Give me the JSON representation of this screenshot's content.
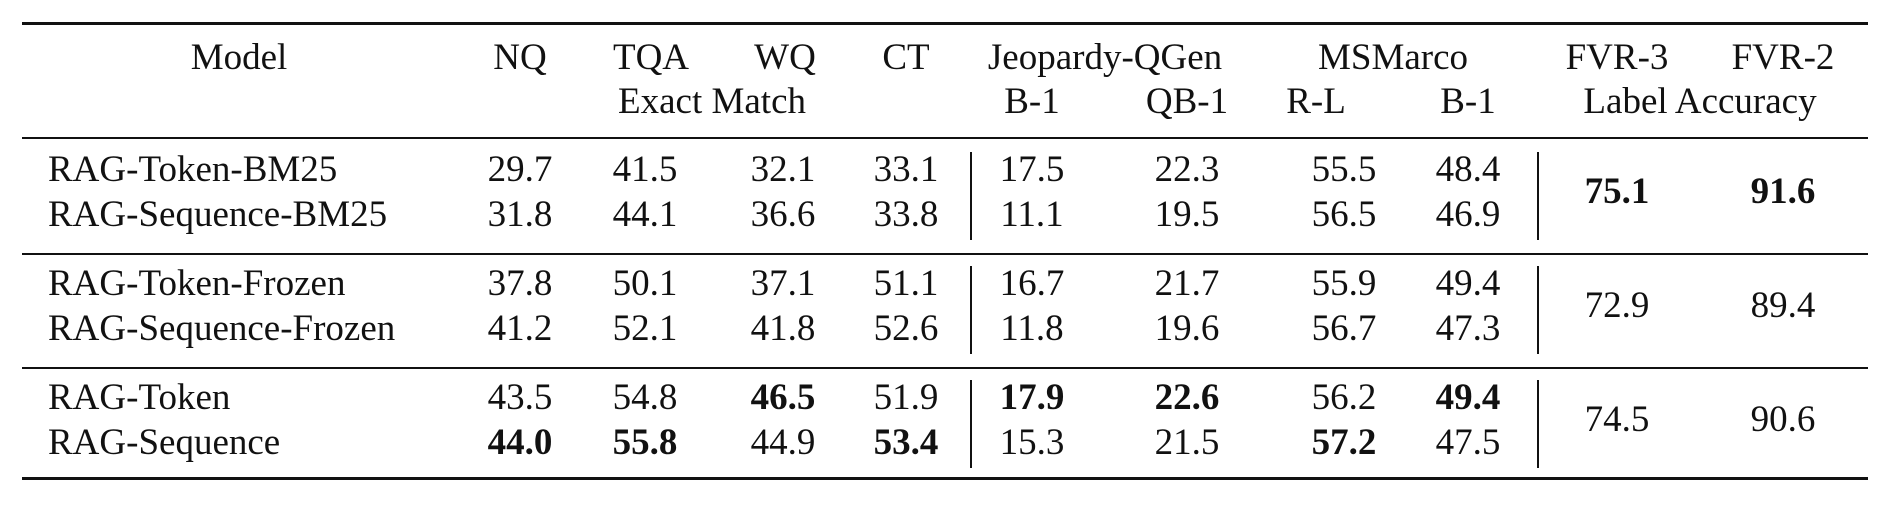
{
  "table": {
    "header": {
      "model": "Model",
      "nq": "NQ",
      "tqa": "TQA",
      "wq": "WQ",
      "ct": "CT",
      "exact_match": "Exact Match",
      "jeopardy": "Jeopardy-QGen",
      "jeo_b1": "B-1",
      "jeo_qb1": "QB-1",
      "msmarco": "MSMarco",
      "ms_rl": "R-L",
      "ms_b1": "B-1",
      "fvr3": "FVR-3",
      "fvr2": "FVR-2",
      "label_accuracy": "Label Accuracy"
    },
    "groups": [
      {
        "fvr3": "75.1",
        "fvr2": "91.6",
        "fvr3_bold": true,
        "fvr2_bold": true,
        "rows": [
          {
            "model": "RAG-Token-BM25",
            "nq": "29.7",
            "tqa": "41.5",
            "wq": "32.1",
            "ct": "33.1",
            "jeo_b1": "17.5",
            "jeo_qb1": "22.3",
            "ms_rl": "55.5",
            "ms_b1": "48.4"
          },
          {
            "model": "RAG-Sequence-BM25",
            "nq": "31.8",
            "tqa": "44.1",
            "wq": "36.6",
            "ct": "33.8",
            "jeo_b1": "11.1",
            "jeo_qb1": "19.5",
            "ms_rl": "56.5",
            "ms_b1": "46.9"
          }
        ]
      },
      {
        "fvr3": "72.9",
        "fvr2": "89.4",
        "rows": [
          {
            "model": "RAG-Token-Frozen",
            "nq": "37.8",
            "tqa": "50.1",
            "wq": "37.1",
            "ct": "51.1",
            "jeo_b1": "16.7",
            "jeo_qb1": "21.7",
            "ms_rl": "55.9",
            "ms_b1": "49.4"
          },
          {
            "model": "RAG-Sequence-Frozen",
            "nq": "41.2",
            "tqa": "52.1",
            "wq": "41.8",
            "ct": "52.6",
            "jeo_b1": "11.8",
            "jeo_qb1": "19.6",
            "ms_rl": "56.7",
            "ms_b1": "47.3"
          }
        ]
      },
      {
        "fvr3": "74.5",
        "fvr2": "90.6",
        "rows": [
          {
            "model": "RAG-Token",
            "nq": "43.5",
            "tqa": "54.8",
            "wq": "46.5",
            "ct": "51.9",
            "jeo_b1": "17.9",
            "jeo_qb1": "22.6",
            "ms_rl": "56.2",
            "ms_b1": "49.4",
            "bold": [
              "wq",
              "jeo_b1",
              "jeo_qb1",
              "ms_b1"
            ]
          },
          {
            "model": "RAG-Sequence",
            "nq": "44.0",
            "tqa": "55.8",
            "wq": "44.9",
            "ct": "53.4",
            "jeo_b1": "15.3",
            "jeo_qb1": "21.5",
            "ms_rl": "57.2",
            "ms_b1": "47.5",
            "bold": [
              "nq",
              "tqa",
              "ct",
              "ms_rl"
            ]
          }
        ]
      }
    ]
  }
}
